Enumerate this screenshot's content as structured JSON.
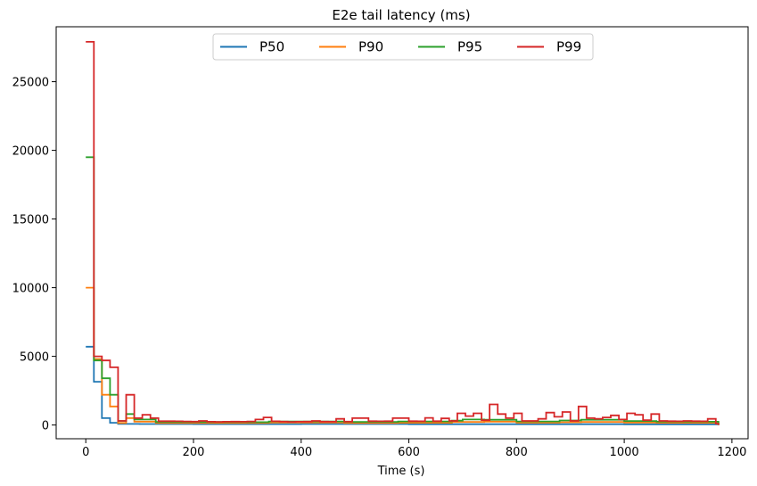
{
  "chart_data": {
    "type": "line",
    "title": "E2e tail latency (ms)",
    "xlabel": "Time (s)",
    "ylabel": "",
    "xlim": [
      -55,
      1230
    ],
    "ylim": [
      -1000,
      29000
    ],
    "xticks": [
      0,
      200,
      400,
      600,
      800,
      1000,
      1200
    ],
    "yticks": [
      0,
      5000,
      10000,
      15000,
      20000,
      25000
    ],
    "grid": false,
    "legend": "upper-center",
    "line_style": "step",
    "series": [
      {
        "name": "P50",
        "color": "#1f77b4",
        "x": [
          0,
          15,
          30,
          45,
          60,
          100,
          200,
          400,
          600,
          800,
          1000,
          1175
        ],
        "y": [
          5700,
          3150,
          500,
          160,
          80,
          70,
          65,
          70,
          60,
          60,
          55,
          0
        ]
      },
      {
        "name": "P90",
        "color": "#ff7f0e",
        "x": [
          0,
          15,
          30,
          45,
          60,
          75,
          90,
          130,
          300,
          340,
          480,
          580,
          680,
          740,
          800,
          880,
          920,
          1000,
          1060,
          1175
        ],
        "y": [
          10000,
          4800,
          2200,
          1350,
          150,
          500,
          250,
          150,
          140,
          180,
          150,
          160,
          220,
          250,
          170,
          200,
          220,
          180,
          160,
          0
        ]
      },
      {
        "name": "P95",
        "color": "#2ca02c",
        "x": [
          0,
          15,
          30,
          45,
          60,
          75,
          90,
          130,
          300,
          340,
          480,
          580,
          680,
          700,
          740,
          800,
          880,
          920,
          1000,
          1060,
          1175
        ],
        "y": [
          19500,
          4700,
          3400,
          2200,
          300,
          800,
          400,
          220,
          210,
          260,
          230,
          260,
          320,
          400,
          380,
          260,
          330,
          380,
          290,
          240,
          0
        ]
      },
      {
        "name": "P99",
        "color": "#d62728",
        "x": [
          0,
          15,
          30,
          45,
          60,
          75,
          90,
          105,
          120,
          135,
          150,
          165,
          180,
          195,
          210,
          225,
          240,
          255,
          270,
          285,
          300,
          315,
          330,
          345,
          360,
          375,
          390,
          405,
          420,
          435,
          450,
          465,
          480,
          495,
          510,
          525,
          540,
          555,
          570,
          585,
          600,
          615,
          630,
          645,
          660,
          675,
          690,
          705,
          720,
          735,
          750,
          765,
          780,
          795,
          810,
          825,
          840,
          855,
          870,
          885,
          900,
          915,
          930,
          945,
          960,
          975,
          990,
          1005,
          1020,
          1035,
          1050,
          1065,
          1080,
          1095,
          1110,
          1125,
          1140,
          1155,
          1170,
          1175
        ],
        "y": [
          27900,
          5000,
          4700,
          4200,
          300,
          2200,
          500,
          750,
          500,
          280,
          280,
          270,
          260,
          250,
          300,
          240,
          230,
          240,
          250,
          240,
          260,
          400,
          550,
          270,
          250,
          230,
          240,
          250,
          300,
          250,
          240,
          450,
          250,
          500,
          500,
          280,
          270,
          280,
          500,
          500,
          280,
          270,
          520,
          280,
          480,
          300,
          850,
          650,
          850,
          350,
          1500,
          800,
          500,
          850,
          300,
          300,
          450,
          900,
          600,
          950,
          300,
          1350,
          500,
          450,
          550,
          700,
          400,
          850,
          750,
          350,
          800,
          300,
          280,
          270,
          300,
          280,
          270,
          450,
          100,
          0
        ]
      }
    ]
  }
}
